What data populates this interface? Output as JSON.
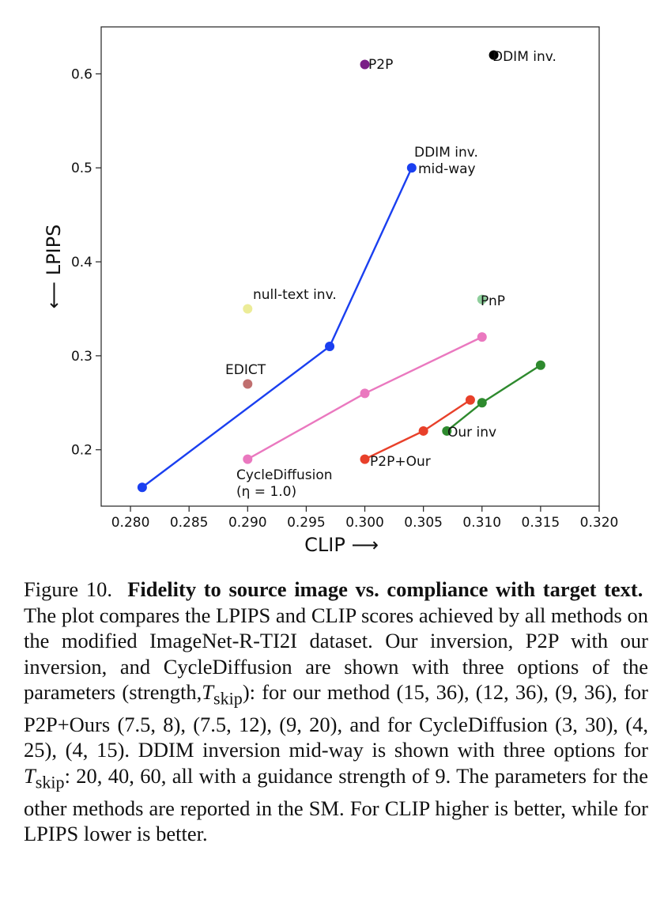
{
  "chart_data": {
    "type": "scatter",
    "xlabel": "CLIP ⟶",
    "ylabel": "⟵ LPIPS",
    "xlim": [
      0.2775,
      0.32
    ],
    "ylim": [
      0.14,
      0.65
    ],
    "xticks": [
      "0.280",
      "0.285",
      "0.290",
      "0.295",
      "0.300",
      "0.305",
      "0.310",
      "0.315",
      "0.320"
    ],
    "yticks": [
      "0.2",
      "0.3",
      "0.4",
      "0.5",
      "0.6"
    ],
    "series": [
      {
        "name": "DDIM inv. mid-way",
        "color": "#1a3ff0",
        "line": true,
        "x": [
          0.281,
          0.297,
          0.304
        ],
        "y": [
          0.16,
          0.31,
          0.5
        ]
      },
      {
        "name": "CycleDiffusion",
        "color": "#ea78bf",
        "line": true,
        "x": [
          0.29,
          0.3,
          0.31
        ],
        "y": [
          0.19,
          0.26,
          0.32
        ]
      },
      {
        "name": "P2P+Our",
        "color": "#e8402a",
        "line": true,
        "x": [
          0.3,
          0.305,
          0.309
        ],
        "y": [
          0.19,
          0.22,
          0.253
        ]
      },
      {
        "name": "Our inv",
        "color": "#2e8a2e",
        "line": true,
        "x": [
          0.307,
          0.31,
          0.315
        ],
        "y": [
          0.22,
          0.25,
          0.29
        ]
      },
      {
        "name": "DDIM inv.",
        "color": "#000000",
        "line": false,
        "x": [
          0.311
        ],
        "y": [
          0.62
        ]
      },
      {
        "name": "P2P",
        "color": "#7a1f86",
        "line": false,
        "x": [
          0.3
        ],
        "y": [
          0.61
        ]
      },
      {
        "name": "PnP",
        "color": "#8fcf9d",
        "line": false,
        "x": [
          0.31
        ],
        "y": [
          0.36
        ]
      },
      {
        "name": "null-text inv.",
        "color": "#ecec98",
        "line": false,
        "x": [
          0.29
        ],
        "y": [
          0.35
        ]
      },
      {
        "name": "EDICT",
        "color": "#c06f6f",
        "line": false,
        "x": [
          0.29
        ],
        "y": [
          0.27
        ]
      }
    ],
    "annotations": [
      {
        "id": "ddim",
        "lines": [
          "DDIM inv."
        ]
      },
      {
        "id": "p2p",
        "lines": [
          "P2P"
        ]
      },
      {
        "id": "ddim-midway",
        "lines": [
          "DDIM inv.",
          "mid-way"
        ]
      },
      {
        "id": "null-text",
        "lines": [
          "null-text inv."
        ]
      },
      {
        "id": "pnp",
        "lines": [
          "PnP"
        ]
      },
      {
        "id": "edict",
        "lines": [
          "EDICT"
        ]
      },
      {
        "id": "our-inv",
        "lines": [
          "Our inv"
        ]
      },
      {
        "id": "p2p-our",
        "lines": [
          "P2P+Our"
        ]
      },
      {
        "id": "cyclediffusion",
        "lines": [
          "CycleDiffusion",
          "(η = 1.0)"
        ]
      }
    ]
  },
  "caption": {
    "figure_label": "Figure 10.",
    "bold_title": "Fidelity to source image vs. compliance with target text.",
    "text_1": "The plot compares the LPIPS and CLIP scores achieved by all methods on the modified ImageNet-R-TI2I dataset. Our inversion, P2P with our inversion, and CycleDiffusion are shown with three options of the parameters (strength,",
    "t_skip": "T",
    "skip_sub": "skip",
    "text_2": "): for our method (15, 36), (12, 36), (9, 36), for P2P+Ours (7.5, 8), (7.5, 12), (9, 20), and for CycleDiffusion (3, 30), (4, 25), (4, 15). DDIM inversion mid-way is shown with three options for",
    "text_3": ": 20, 40, 60, all with a guidance strength of 9. The parameters for the other methods are reported in the SM. For CLIP higher is better, while for LPIPS lower is better."
  }
}
